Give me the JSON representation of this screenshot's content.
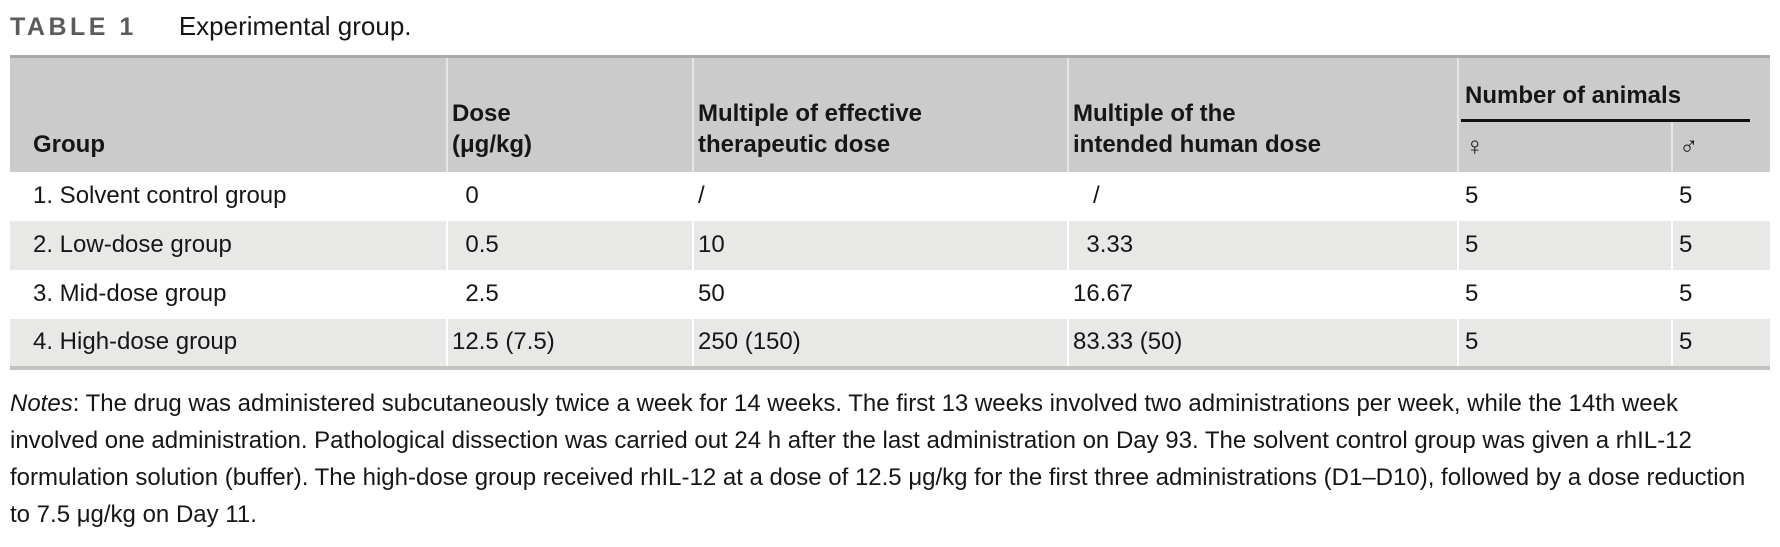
{
  "caption": {
    "label": "TABLE 1",
    "title": "Experimental group."
  },
  "table": {
    "columns": {
      "group": "Group",
      "dose_line1": "Dose",
      "dose_line2": "(μg/kg)",
      "mult_eff_line1": "Multiple of effective",
      "mult_eff_line2": "therapeutic dose",
      "mult_human_line1": "Multiple of the",
      "mult_human_line2": "intended human dose",
      "animals": "Number of animals",
      "female_symbol": "♀",
      "male_symbol": "♂"
    },
    "rows": [
      {
        "group": "1. Solvent control group",
        "dose": "0",
        "mult_eff": "/",
        "mult_human": "/",
        "female": "5",
        "male": "5"
      },
      {
        "group": "2. Low-dose group",
        "dose": "0.5",
        "mult_eff": "10",
        "mult_human": "3.33",
        "female": "5",
        "male": "5"
      },
      {
        "group": "3. Mid-dose group",
        "dose": "2.5",
        "mult_eff": "50",
        "mult_human": "16.67",
        "female": "5",
        "male": "5"
      },
      {
        "group": "4. High-dose group",
        "dose": "12.5 (7.5)",
        "mult_eff": "250 (150)",
        "mult_human": "83.33 (50)",
        "female": "5",
        "male": "5"
      }
    ]
  },
  "notes": {
    "label": "Notes",
    "text": ": The drug was administered subcutaneously twice a week for 14 weeks. The first 13 weeks involved two administrations per week, while the 14th week involved one administration. Pathological dissection was carried out 24 h after the last administration on Day 93. The solvent control group was given a rhIL-12 formulation solution (buffer). The high-dose group received rhIL-12 at a dose of 12.5 μg/kg for the first three administrations (D1–D10), followed by a dose reduction to 7.5 μg/kg on Day 11."
  },
  "colors": {
    "header_bg": "#cbcbcb",
    "row_alt_bg": "#e8e8e6",
    "table_top_border": "#a9a9a9",
    "table_bottom_border": "#c2c2be",
    "caption_label": "#5c5c5c",
    "text": "#161616",
    "rule": "#111111"
  }
}
